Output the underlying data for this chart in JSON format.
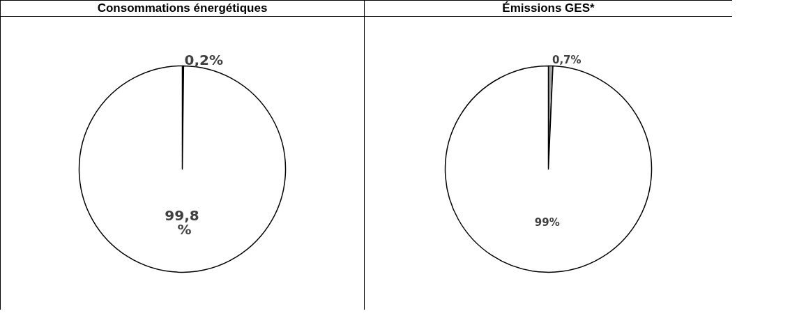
{
  "chart_data": [
    {
      "type": "pie",
      "title": "Consommations énergétiques",
      "categories": [
        null,
        null
      ],
      "values": [
        0.2,
        99.8
      ],
      "colors": [
        "#000000",
        "#ffffff"
      ],
      "value_labels": [
        "0,2%",
        "99,8 %"
      ]
    },
    {
      "type": "pie",
      "title": "Émissions GES*",
      "categories": [
        null,
        null
      ],
      "values": [
        0.7,
        99
      ],
      "colors": [
        "#a6a6a6",
        "#ffffff"
      ],
      "value_labels": [
        "0,7%",
        "99%"
      ]
    }
  ]
}
